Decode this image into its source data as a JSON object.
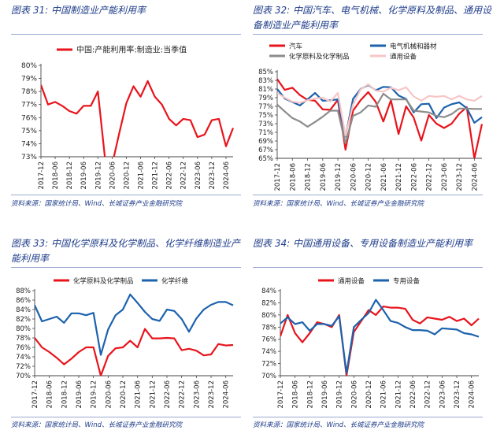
{
  "figures": [
    {
      "label": "图表 31:",
      "title": "中国制造业产能利用率",
      "source": "资料来源：国家统计局、Wind、长城证券产业金融研究院"
    },
    {
      "label": "图表 32:",
      "title": "中国汽车、电气机械、化学原料及制品、通用设备制造业产能利用率",
      "source": "资料来源：国家统计局、Wind、长城证券产业金融研究院"
    },
    {
      "label": "图表 33:",
      "title": "中国化学原料及化学制品、化学纤维制造业产能利用率",
      "source": "资料来源：国家统计局、Wind、长城证券产业金融研究院"
    },
    {
      "label": "图表 34:",
      "title": "中国通用设备、专用设备制造业产能利用率",
      "source": "资料来源：国家统计局、Wind、长城证券产业金融研究院"
    }
  ],
  "colors": {
    "red": "#e8141c",
    "blue": "#1c62ad",
    "gray": "#8c8c8c",
    "pink": "#f7c6c6",
    "title": "#1f3d8a"
  },
  "chart_data": [
    {
      "type": "line",
      "x_ticks": [
        "2017-12",
        "2018-06",
        "2018-12",
        "2019-06",
        "2019-12",
        "2020-06",
        "2020-12",
        "2021-06",
        "2021-12",
        "2022-06",
        "2022-12",
        "2023-06",
        "2023-12",
        "2024-06"
      ],
      "ylim": [
        73,
        80
      ],
      "y_ticks": [
        73,
        74,
        75,
        76,
        77,
        78,
        79,
        80
      ],
      "y_format": "%",
      "legend": "top-center",
      "series": [
        {
          "name": "中国:产能利用率:制造业:当季值",
          "color": "#e8141c",
          "values": [
            78.5,
            77.0,
            77.2,
            76.9,
            76.5,
            76.3,
            76.9,
            76.9,
            78.0,
            72.9,
            72.4,
            74.8,
            77.1,
            78.4,
            77.6,
            78.8,
            77.6,
            77.0,
            75.9,
            75.4,
            75.9,
            75.8,
            74.5,
            74.7,
            75.8,
            75.9,
            73.8,
            75.2
          ]
        }
      ]
    },
    {
      "type": "line",
      "x_ticks": [
        "2017-12",
        "2018-06",
        "2018-12",
        "2019-06",
        "2019-12",
        "2020-06",
        "2020-12",
        "2021-06",
        "2021-12",
        "2022-06",
        "2022-12",
        "2023-06",
        "2023-12",
        "2024-06"
      ],
      "ylim": [
        65,
        85
      ],
      "y_ticks": [
        65,
        67,
        69,
        71,
        73,
        75,
        77,
        79,
        81,
        83,
        85
      ],
      "y_format": "%",
      "legend": "top",
      "series": [
        {
          "name": "汽车",
          "color": "#e8141c",
          "values": [
            83.3,
            80.8,
            81.3,
            79.6,
            78.5,
            78.3,
            76.3,
            76.2,
            78.5,
            67.0,
            76.0,
            78.4,
            80.3,
            78.0,
            73.5,
            78.4,
            70.6,
            77.0,
            74.4,
            69.1,
            75.0,
            73.0,
            72.0,
            73.0,
            75.3,
            76.8,
            65.0,
            72.9
          ]
        },
        {
          "name": "电气机械和器材",
          "color": "#1c62ad",
          "values": [
            81.0,
            78.8,
            78.0,
            77.2,
            78.6,
            80.1,
            78.3,
            78.4,
            78.6,
            70.0,
            78.7,
            81.0,
            81.9,
            80.7,
            81.5,
            81.4,
            79.5,
            78.7,
            75.6,
            77.5,
            77.6,
            74.3,
            76.7,
            77.5,
            77.9,
            76.6,
            73.2,
            74.5
          ]
        },
        {
          "name": "化学原料及化学制品",
          "color": "#8c8c8c",
          "values": [
            77.4,
            75.8,
            74.3,
            73.5,
            72.3,
            73.4,
            74.6,
            76.0,
            76.0,
            68.5,
            74.8,
            75.6,
            77.2,
            76.9,
            79.9,
            78.6,
            78.6,
            78.6,
            76.0,
            75.8,
            75.6,
            74.8,
            74.5,
            75.2,
            76.5,
            76.5,
            76.4,
            76.4
          ]
        },
        {
          "name": "通用设备",
          "color": "#f7c6c6",
          "values": [
            80.1,
            79.0,
            78.1,
            77.8,
            78.4,
            78.8,
            79.0,
            78.1,
            80.1,
            70.2,
            77.4,
            80.9,
            82.1,
            80.6,
            80.4,
            81.3,
            80.7,
            81.4,
            79.3,
            78.3,
            79.4,
            79.2,
            79.4,
            78.6,
            79.4,
            78.6,
            78.3,
            79.4
          ]
        }
      ]
    },
    {
      "type": "line",
      "x_ticks": [
        "2017-12",
        "2018-06",
        "2018-12",
        "2019-06",
        "2019-12",
        "2020-06",
        "2020-12",
        "2021-06",
        "2021-12",
        "2022-06",
        "2022-12",
        "2023-06",
        "2023-12",
        "2024-06"
      ],
      "ylim": [
        70,
        88
      ],
      "y_ticks": [
        70,
        72,
        74,
        76,
        78,
        80,
        82,
        84,
        86,
        88
      ],
      "y_format": "%",
      "legend": "top",
      "series": [
        {
          "name": "化学原料及化学制品",
          "color": "#e8141c",
          "values": [
            78.0,
            76.0,
            75.0,
            73.8,
            72.4,
            73.6,
            75.0,
            76.0,
            76.0,
            70.0,
            74.2,
            75.8,
            76.0,
            77.4,
            76.0,
            79.9,
            77.9,
            77.9,
            78.0,
            77.9,
            75.4,
            75.7,
            75.3,
            74.3,
            74.5,
            76.7,
            76.4,
            76.5
          ]
        },
        {
          "name": "化学纤维",
          "color": "#1c62ad",
          "values": [
            84.9,
            81.5,
            82.0,
            82.5,
            81.2,
            83.2,
            83.2,
            82.8,
            83.3,
            74.4,
            79.8,
            82.8,
            84.0,
            87.2,
            85.4,
            83.5,
            82.0,
            81.6,
            84.0,
            83.7,
            82.0,
            79.3,
            82.1,
            84.0,
            85.0,
            85.6,
            85.6,
            84.9
          ]
        }
      ]
    },
    {
      "type": "line",
      "x_ticks": [
        "2017-12",
        "2018-06",
        "2018-12",
        "2019-06",
        "2019-12",
        "2020-06",
        "2020-12",
        "2021-06",
        "2021-12",
        "2022-06",
        "2022-12",
        "2023-06",
        "2023-12",
        "2024-06"
      ],
      "ylim": [
        70,
        84
      ],
      "y_ticks": [
        70,
        72,
        74,
        76,
        78,
        80,
        82,
        84
      ],
      "y_format": "%",
      "legend": "top",
      "series": [
        {
          "name": "通用设备",
          "color": "#e8141c",
          "values": [
            76.5,
            80.0,
            77.0,
            75.5,
            77.0,
            78.8,
            78.5,
            78.0,
            80.0,
            70.0,
            77.2,
            79.0,
            80.8,
            80.0,
            81.4,
            81.2,
            81.2,
            81.0,
            79.2,
            78.6,
            79.6,
            79.4,
            79.2,
            79.7,
            79.0,
            79.4,
            78.3,
            79.4
          ]
        },
        {
          "name": "专用设备",
          "color": "#1c62ad",
          "values": [
            78.6,
            79.6,
            78.5,
            78.8,
            77.4,
            78.5,
            78.5,
            78.2,
            79.8,
            70.4,
            78.0,
            79.2,
            80.3,
            82.5,
            80.8,
            79.0,
            78.7,
            78.0,
            77.5,
            77.5,
            77.4,
            76.8,
            77.8,
            77.7,
            77.6,
            77.0,
            76.8,
            76.4
          ]
        }
      ]
    }
  ]
}
